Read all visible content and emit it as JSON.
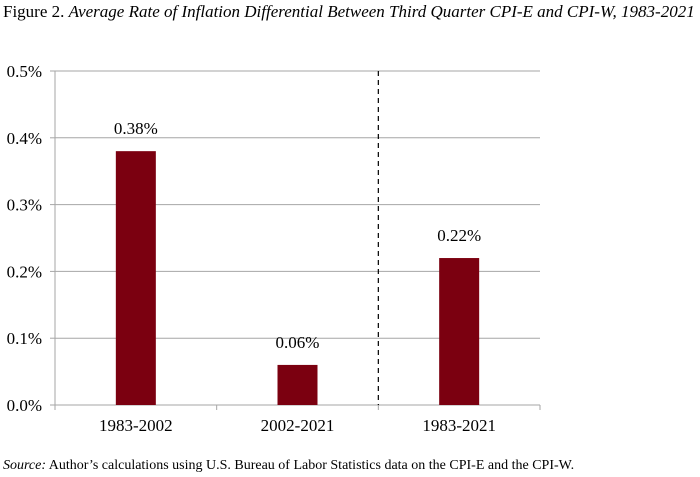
{
  "title": {
    "label": "Figure 2.",
    "text": "Average Rate of Inflation Differential Between Third Quarter CPI-E and CPI-W, 1983-2021"
  },
  "source": {
    "label": "Source:",
    "text": "Author’s calculations using U.S. Bureau of Labor Statistics data on the CPI-E and the CPI-W."
  },
  "colors": {
    "bar": "#7b0010",
    "grid": "#a6a6a6",
    "axis": "#000000"
  },
  "chart_data": {
    "type": "bar",
    "categories": [
      "1983-2002",
      "2002-2021",
      "1983-2021"
    ],
    "values": [
      0.38,
      0.06,
      0.22
    ],
    "data_labels": [
      "0.38%",
      "0.06%",
      "0.22%"
    ],
    "title": "Average Rate of Inflation Differential Between Third Quarter CPI-E and CPI-W, 1983-2021",
    "xlabel": "",
    "ylabel": "",
    "ylim": [
      0,
      0.5
    ],
    "yticks": [
      0,
      0.1,
      0.2,
      0.3,
      0.4,
      0.5
    ],
    "ytick_labels": [
      "0.0%",
      "0.1%",
      "0.2%",
      "0.3%",
      "0.4%",
      "0.5%"
    ],
    "grid": true,
    "legend": "none",
    "separator": "dashed vertical line between 2002-2021 and 1983-2021"
  }
}
